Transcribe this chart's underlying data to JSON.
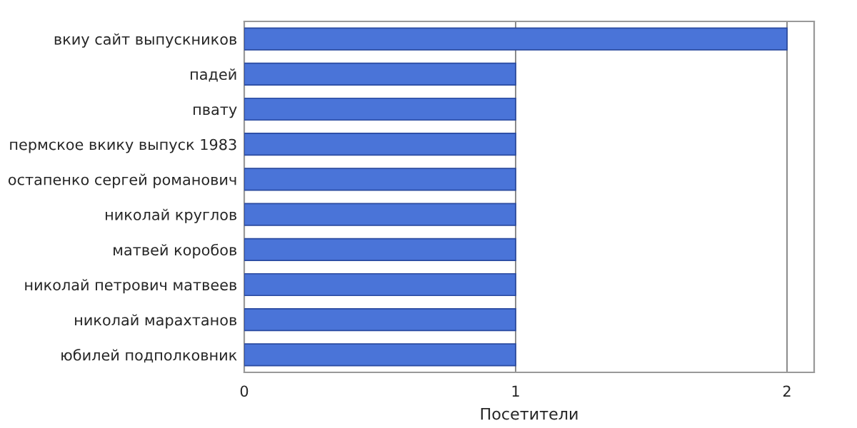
{
  "chart_data": {
    "type": "bar",
    "orientation": "horizontal",
    "xlabel": "Посетители",
    "categories": [
      "вкиу сайт выпускников",
      "падей",
      "пвату",
      "пермское вкику выпуск 1983",
      "остапенко сергей романович",
      "николай круглов",
      "матвей коробов",
      "николай петрович матвеев",
      "николай марахтанов",
      "юбилей подполковник"
    ],
    "values": [
      2,
      1,
      1,
      1,
      1,
      1,
      1,
      1,
      1,
      1
    ],
    "color": "#4a74d8",
    "xlim": [
      0,
      2.1
    ],
    "xticks": [
      0,
      1,
      2
    ],
    "grid": "x",
    "legend": false
  }
}
